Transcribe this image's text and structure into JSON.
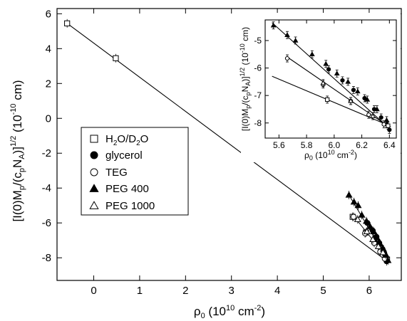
{
  "chart_data": [
    {
      "type": "scatter",
      "xlabel": "ρ₀ (10¹⁰ cm⁻²)",
      "ylabel": "[I(0)Mp/(cpNA)]^1/2 (10⁻¹⁰ cm)",
      "xlim": [
        -0.8,
        6.7
      ],
      "ylim": [
        -9.3,
        6.3
      ],
      "xticks": [
        0,
        1,
        2,
        3,
        4,
        5,
        6
      ],
      "yticks": [
        -8,
        -6,
        -4,
        -2,
        0,
        2,
        4,
        6
      ],
      "legend_position": "center-left",
      "grid": false,
      "series": [
        {
          "name": "H2O/D2O",
          "marker": "open-square",
          "points": [
            [
              -0.58,
              5.45
            ],
            [
              0.48,
              3.45
            ],
            [
              5.64,
              -5.65
            ],
            [
              5.93,
              -6.55
            ],
            [
              6.39,
              -8.1
            ]
          ]
        },
        {
          "name": "glycerol",
          "marker": "filled-circle",
          "points": [
            [
              5.96,
              -6.0
            ],
            [
              6.08,
              -6.45
            ],
            [
              6.16,
              -6.8
            ],
            [
              6.22,
              -7.15
            ],
            [
              6.29,
              -7.5
            ],
            [
              6.33,
              -7.75
            ],
            [
              6.38,
              -8.2
            ]
          ]
        },
        {
          "name": "TEG",
          "marker": "open-circle",
          "points": [
            [
              5.66,
              -5.65
            ],
            [
              5.91,
              -6.6
            ],
            [
              6.11,
              -7.15
            ],
            [
              6.24,
              -7.65
            ],
            [
              6.34,
              -8.05
            ]
          ]
        },
        {
          "name": "PEG 400",
          "marker": "filled-triangle",
          "points": [
            [
              5.56,
              -4.4
            ],
            [
              5.67,
              -4.8
            ],
            [
              5.76,
              -5.0
            ],
            [
              5.84,
              -5.55
            ],
            [
              5.94,
              -5.9
            ],
            [
              6.02,
              -6.2
            ],
            [
              6.1,
              -6.5
            ],
            [
              6.17,
              -6.85
            ],
            [
              6.24,
              -7.2
            ],
            [
              6.31,
              -7.5
            ],
            [
              6.37,
              -7.85
            ],
            [
              6.41,
              -8.15
            ]
          ]
        },
        {
          "name": "PEG 1000",
          "marker": "open-triangle",
          "points": [
            [
              5.75,
              -5.8
            ],
            [
              5.95,
              -6.5
            ],
            [
              6.08,
              -6.95
            ],
            [
              6.2,
              -7.35
            ],
            [
              6.3,
              -7.7
            ]
          ]
        }
      ],
      "fit_lines": [
        {
          "points": [
            [
              -0.58,
              5.45
            ],
            [
              6.42,
              -8.25
            ]
          ]
        }
      ]
    },
    {
      "type": "scatter",
      "inset": true,
      "xlabel": "ρ₀ (10¹⁰ cm⁻²)",
      "ylabel": "[I(0)Mp/(cpNA)]^1/2 (10⁻¹⁰ cm)",
      "xlim": [
        5.5,
        6.45
      ],
      "ylim": [
        -8.55,
        -4.25
      ],
      "xticks": [
        5.6,
        5.8,
        6.0,
        6.2,
        6.4
      ],
      "yticks": [
        -8,
        -7,
        -6,
        -5
      ],
      "series": [
        {
          "name": "PEG 400",
          "marker": "filled-triangle",
          "points": [
            [
              5.56,
              -4.45
            ],
            [
              5.66,
              -4.8
            ],
            [
              5.72,
              -5.0
            ],
            [
              5.84,
              -5.5
            ],
            [
              5.94,
              -5.85
            ],
            [
              6.02,
              -6.2
            ],
            [
              6.1,
              -6.5
            ],
            [
              6.17,
              -6.85
            ],
            [
              6.24,
              -7.15
            ],
            [
              6.31,
              -7.5
            ],
            [
              6.38,
              -7.9
            ]
          ]
        },
        {
          "name": "glycerol",
          "marker": "filled-circle",
          "points": [
            [
              5.96,
              -6.05
            ],
            [
              6.06,
              -6.45
            ],
            [
              6.14,
              -6.8
            ],
            [
              6.22,
              -7.1
            ],
            [
              6.29,
              -7.5
            ],
            [
              6.34,
              -7.8
            ],
            [
              6.38,
              -8.05
            ],
            [
              6.4,
              -8.25
            ]
          ]
        },
        {
          "name": "TEG",
          "marker": "open-circle",
          "points": [
            [
              5.66,
              -5.65
            ],
            [
              5.92,
              -6.6
            ],
            [
              6.12,
              -7.2
            ],
            [
              6.25,
              -7.7
            ],
            [
              6.36,
              -8.05
            ]
          ]
        },
        {
          "name": "PEG 1000",
          "marker": "open-triangle",
          "points": [
            [
              5.92,
              -6.55
            ],
            [
              6.12,
              -7.2
            ],
            [
              6.28,
              -7.75
            ]
          ]
        },
        {
          "name": "H2O/D2O",
          "marker": "open-square",
          "points": [
            [
              5.95,
              -7.15
            ],
            [
              6.39,
              -8.1
            ]
          ]
        }
      ],
      "fit_lines": [
        {
          "points": [
            [
              5.55,
              -4.35
            ],
            [
              6.4,
              -8.2
            ]
          ]
        },
        {
          "points": [
            [
              5.66,
              -5.6
            ],
            [
              6.4,
              -8.15
            ]
          ]
        },
        {
          "points": [
            [
              5.55,
              -6.3
            ],
            [
              6.4,
              -8.1
            ]
          ]
        }
      ]
    }
  ]
}
